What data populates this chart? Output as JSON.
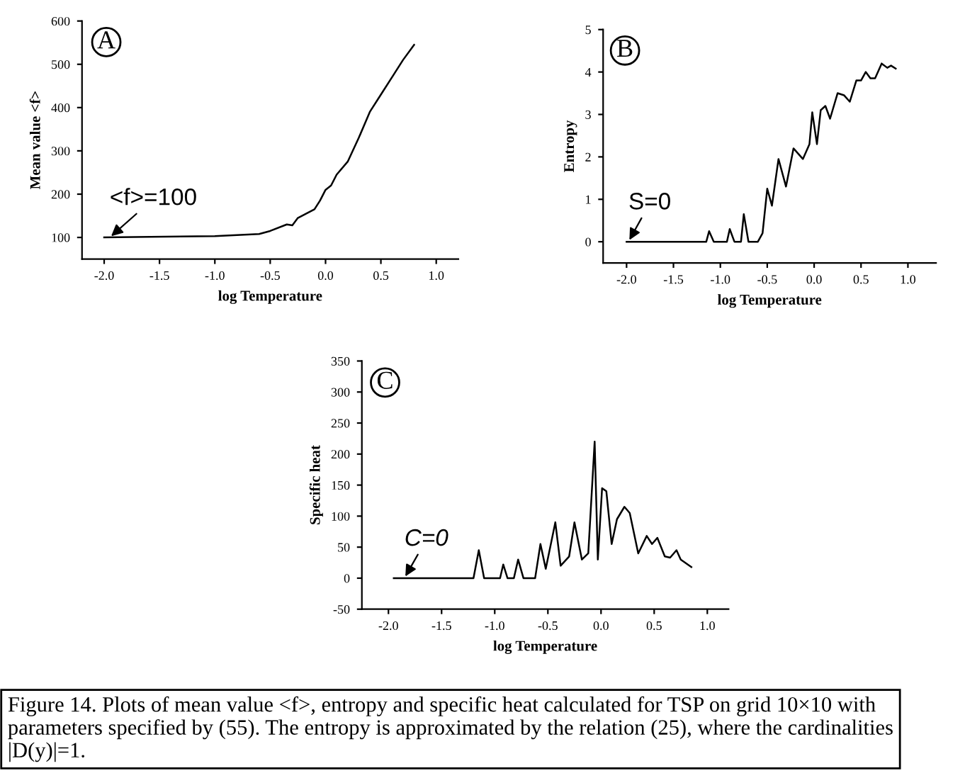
{
  "chart_data": [
    {
      "type": "line",
      "xlabel": "log Temperature",
      "ylabel": "Mean value <f>",
      "xlim": [
        -2.2,
        1.2
      ],
      "ylim": [
        50,
        600
      ],
      "xticks": [
        {
          "value": -2,
          "label": "-2.0"
        },
        {
          "value": -1.5,
          "label": "-1.5"
        },
        {
          "value": -1,
          "label": "-1.0"
        },
        {
          "value": -0.5,
          "label": "-0.5"
        },
        {
          "value": 0,
          "label": "0.0"
        },
        {
          "value": 0.5,
          "label": "0.5"
        },
        {
          "value": 1,
          "label": "1.0"
        }
      ],
      "yticks": [
        {
          "value": 100,
          "label": "100"
        },
        {
          "value": 200,
          "label": "200"
        },
        {
          "value": 300,
          "label": "300"
        },
        {
          "value": 400,
          "label": "400"
        },
        {
          "value": 500,
          "label": "500"
        },
        {
          "value": 600,
          "label": "600"
        }
      ],
      "series": [
        {
          "color": "#000000",
          "x": [
            -2.0,
            -1.0,
            -0.6,
            -0.5,
            -0.35,
            -0.3,
            -0.25,
            -0.1,
            -0.05,
            0.0,
            0.05,
            0.1,
            0.2,
            0.3,
            0.4,
            0.5,
            0.6,
            0.7,
            0.8
          ],
          "values": [
            100,
            103,
            108,
            115,
            130,
            128,
            145,
            165,
            185,
            210,
            220,
            245,
            275,
            330,
            390,
            430,
            470,
            510,
            545
          ]
        }
      ],
      "annotations": [
        "A",
        {
          "text": "<f>=100",
          "x": -1.95,
          "y": 100
        }
      ],
      "grid": false,
      "legend": false,
      "marker": "none",
      "line_style": "solid"
    },
    {
      "type": "line",
      "xlabel": "log Temperature",
      "ylabel": "Entropy",
      "xlim": [
        -2.25,
        1.3
      ],
      "ylim": [
        -0.5,
        5
      ],
      "xticks": [
        {
          "value": -2,
          "label": "-2.0"
        },
        {
          "value": -1.5,
          "label": "-1.5"
        },
        {
          "value": -1,
          "label": "-1.0"
        },
        {
          "value": -0.5,
          "label": "-0.5"
        },
        {
          "value": 0,
          "label": "0.0"
        },
        {
          "value": 0.5,
          "label": "0.5"
        },
        {
          "value": 1,
          "label": "1.0"
        }
      ],
      "yticks": [
        0,
        1,
        2,
        3,
        4,
        5
      ],
      "series": [
        {
          "color": "#000000",
          "x": [
            -2.0,
            -1.15,
            -1.12,
            -1.07,
            -0.93,
            -0.9,
            -0.85,
            -0.78,
            -0.75,
            -0.7,
            -0.6,
            -0.55,
            -0.5,
            -0.45,
            -0.38,
            -0.3,
            -0.22,
            -0.12,
            -0.05,
            -0.02,
            0.03,
            0.07,
            0.12,
            0.17,
            0.25,
            0.32,
            0.38,
            0.45,
            0.5,
            0.55,
            0.6,
            0.65,
            0.72,
            0.78,
            0.82,
            0.87
          ],
          "values": [
            0,
            0,
            0.25,
            0,
            0,
            0.3,
            0,
            0,
            0.65,
            0,
            0,
            0.2,
            1.25,
            0.85,
            1.95,
            1.3,
            2.2,
            1.95,
            2.3,
            3.05,
            2.3,
            3.1,
            3.2,
            2.9,
            3.5,
            3.45,
            3.3,
            3.8,
            3.8,
            4.0,
            3.85,
            3.85,
            4.2,
            4.1,
            4.15,
            4.08
          ]
        }
      ],
      "annotations": [
        "B",
        {
          "text": "S=0",
          "x": -1.98,
          "y": 0
        }
      ],
      "grid": false,
      "legend": false,
      "marker": "none",
      "line_style": "solid"
    },
    {
      "type": "line",
      "xlabel": "log Temperature",
      "ylabel": "Specific heat",
      "xlim": [
        -2.25,
        1.2
      ],
      "ylim": [
        -50,
        350
      ],
      "xticks": [
        {
          "value": -2,
          "label": "-2.0"
        },
        {
          "value": -1.5,
          "label": "-1.5"
        },
        {
          "value": -1,
          "label": "-1.0"
        },
        {
          "value": -0.5,
          "label": "-0.5"
        },
        {
          "value": 0,
          "label": "0.0"
        },
        {
          "value": 0.5,
          "label": "0.5"
        },
        {
          "value": 1,
          "label": "1.0"
        }
      ],
      "yticks": [
        -50,
        0,
        50,
        100,
        150,
        200,
        250,
        300,
        350
      ],
      "series": [
        {
          "color": "#000000",
          "x": [
            -1.95,
            -1.2,
            -1.15,
            -1.1,
            -0.95,
            -0.92,
            -0.88,
            -0.82,
            -0.78,
            -0.73,
            -0.62,
            -0.57,
            -0.52,
            -0.43,
            -0.38,
            -0.3,
            -0.25,
            -0.18,
            -0.12,
            -0.06,
            -0.03,
            0.01,
            0.05,
            0.1,
            0.15,
            0.22,
            0.27,
            0.35,
            0.43,
            0.48,
            0.53,
            0.6,
            0.65,
            0.71,
            0.75,
            0.85
          ],
          "values": [
            0,
            0,
            45,
            0,
            0,
            22,
            0,
            0,
            30,
            0,
            0,
            55,
            15,
            90,
            20,
            35,
            90,
            30,
            40,
            220,
            30,
            145,
            140,
            55,
            95,
            115,
            105,
            40,
            68,
            55,
            65,
            35,
            33,
            45,
            30,
            18
          ]
        }
      ],
      "annotations": [
        "C",
        {
          "text": "C=0",
          "x": -1.85,
          "y": 0
        },
        "Figure 14. Plots of mean value <f>, entropy and specific heat calculated for TSP on grid 10×10 with parameters specified by (55). The entropy is approximated by the relation (25), where the cardinalities |D(y)|=1."
      ],
      "grid": false,
      "legend": false,
      "marker": "none",
      "line_style": "solid"
    }
  ]
}
